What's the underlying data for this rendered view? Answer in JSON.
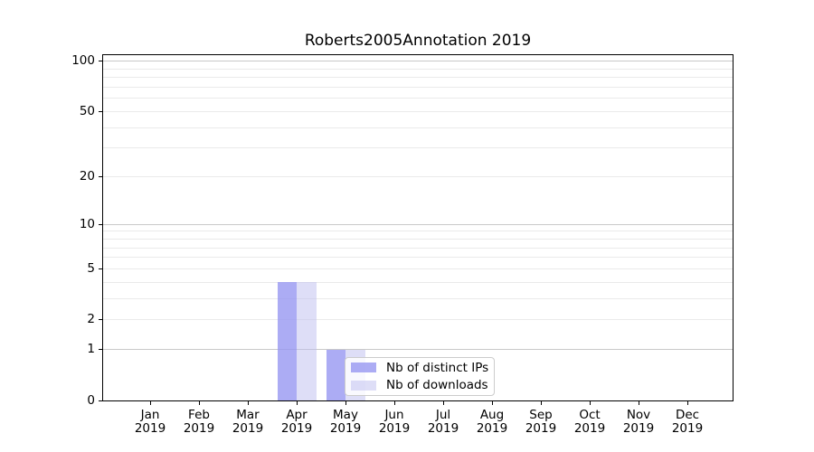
{
  "title": "Roberts2005Annotation 2019",
  "colors": {
    "ips_bar": "rgba(151,151,241,0.8)",
    "ips_bar_solid": "#acacf0",
    "downloads_bar": "rgba(189,189,239,0.5)",
    "downloads_bar_solid": "#dedef7",
    "grid_major": "#c9c9c9",
    "grid_minor": "#eaeaea",
    "axis_line": "#000000",
    "legend_border": "#cccccc",
    "legend_bg": "rgba(255,255,255,0.8)",
    "text": "#000000",
    "background": "#ffffff"
  },
  "legend": {
    "items": [
      {
        "label": "Nb of distinct IPs",
        "color_key": "ips_bar"
      },
      {
        "label": "Nb of downloads",
        "color_key": "downloads_bar"
      }
    ]
  },
  "chart_data": {
    "type": "bar",
    "title": "Roberts2005Annotation 2019",
    "categories": [
      "Jan",
      "Feb",
      "Mar",
      "Apr",
      "May",
      "Jun",
      "Jul",
      "Aug",
      "Sep",
      "Oct",
      "Nov",
      "Dec"
    ],
    "x_year_label": "2019",
    "series": [
      {
        "name": "Nb of distinct IPs",
        "color_key": "ips_bar",
        "values": [
          0,
          0,
          0,
          4,
          1,
          0,
          0,
          0,
          0,
          0,
          0,
          0
        ]
      },
      {
        "name": "Nb of downloads",
        "color_key": "downloads_bar",
        "values": [
          0,
          0,
          0,
          4,
          1,
          0,
          0,
          0,
          0,
          0,
          0,
          0
        ]
      }
    ],
    "yscale": "log1p",
    "ylim": [
      0,
      109
    ],
    "y_major_ticks": [
      100,
      50,
      20,
      10,
      5,
      2,
      1,
      0
    ],
    "y_gridlines_major": [
      1,
      10,
      100
    ],
    "y_gridlines_minor": [
      2,
      3,
      4,
      5,
      6,
      7,
      8,
      9,
      20,
      30,
      40,
      50,
      60,
      70,
      80,
      90
    ],
    "grid": "horizontal-only",
    "legend_position": "lower-right-inside",
    "xlabel": "",
    "ylabel": ""
  }
}
